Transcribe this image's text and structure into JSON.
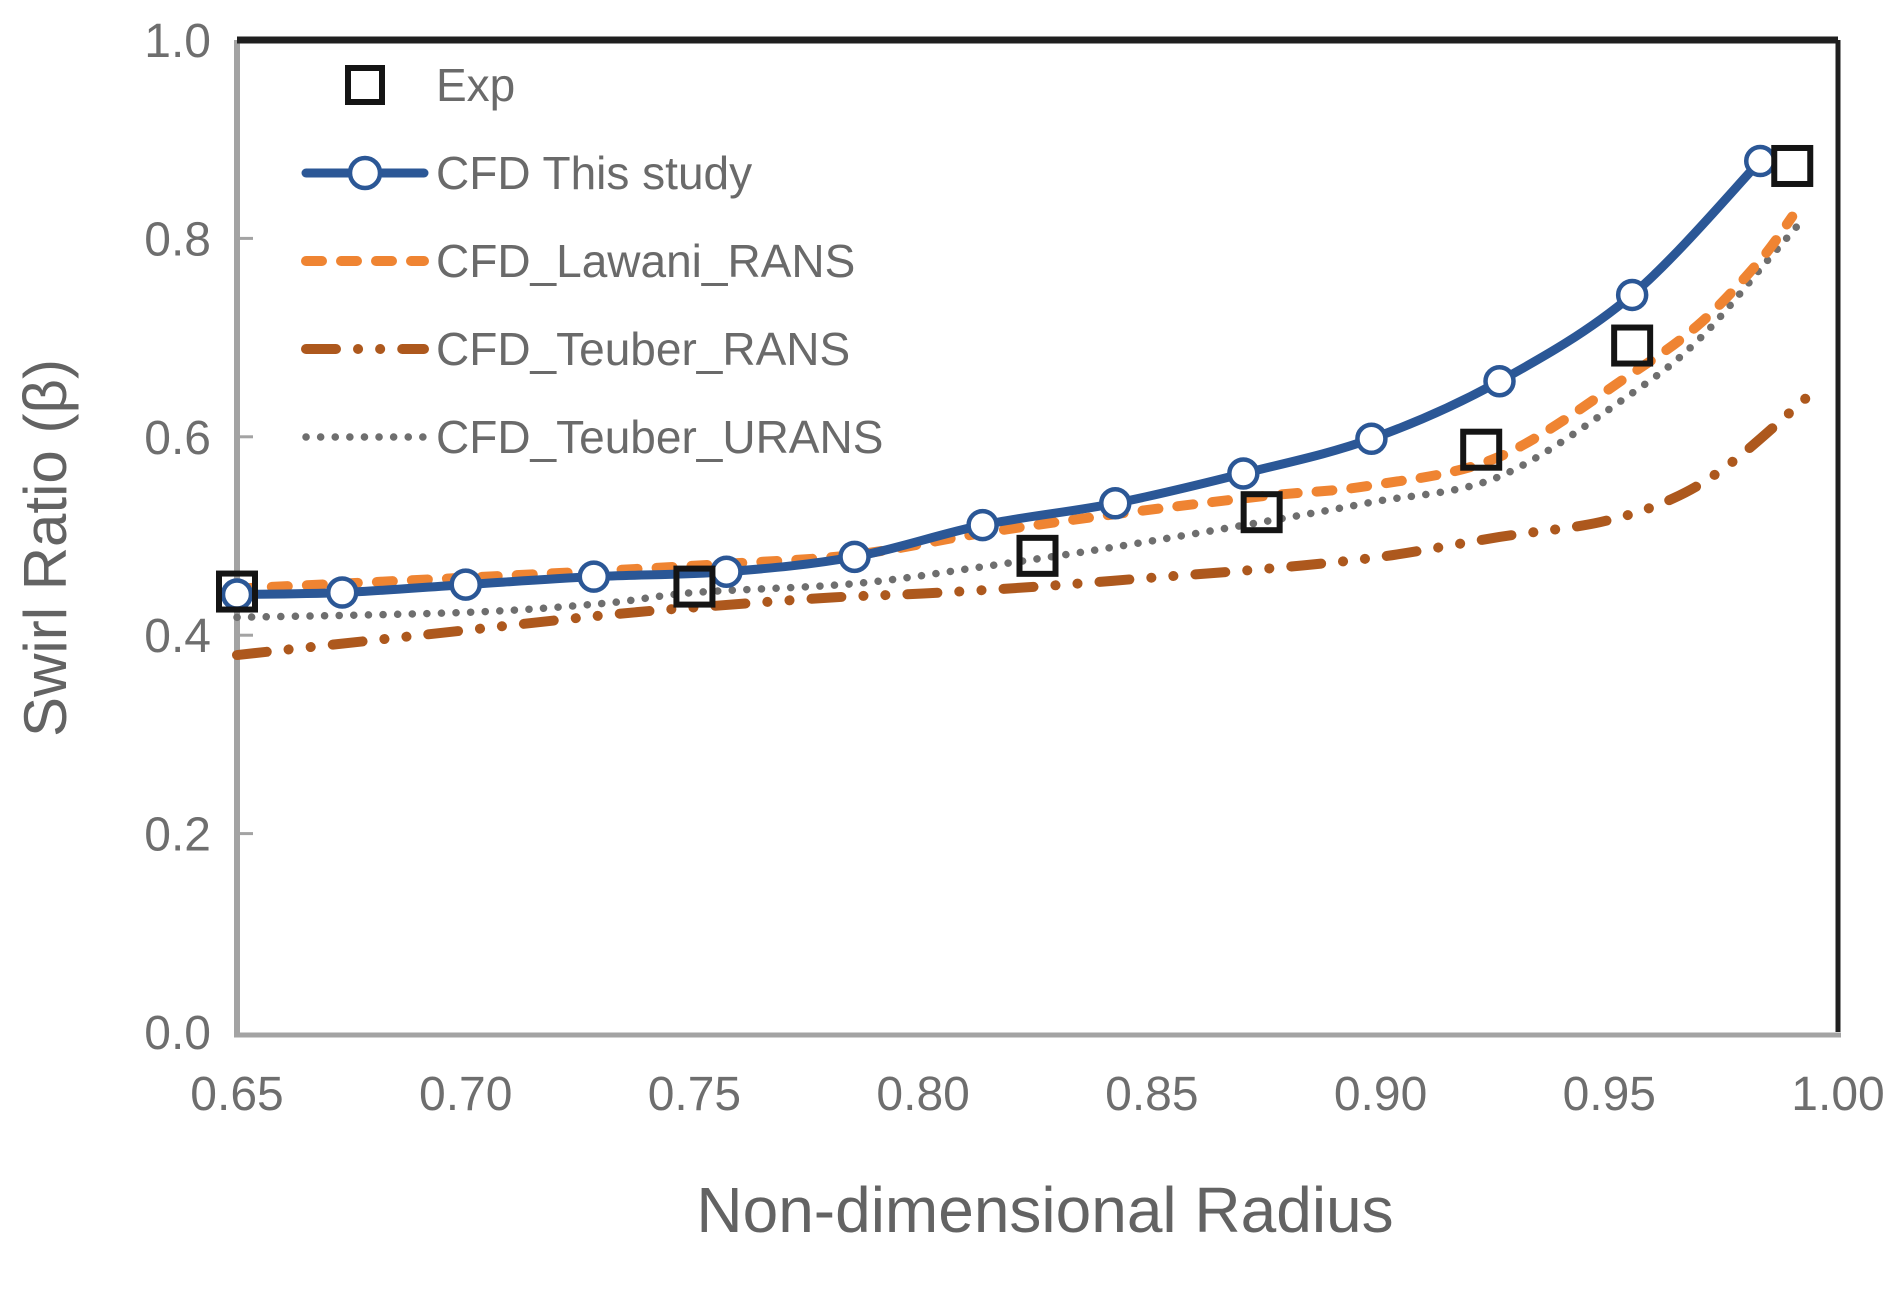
{
  "chart_data": {
    "type": "line",
    "title": "",
    "xlabel": "Non-dimensional Radius",
    "ylabel": "Swirl Ratio (β)",
    "xlim": [
      0.65,
      1.0
    ],
    "ylim": [
      0.0,
      1.0
    ],
    "grid": false,
    "legend_position": "inside-top-left",
    "x_ticks": [
      "0.65",
      "0.70",
      "0.75",
      "0.80",
      "0.85",
      "0.90",
      "0.95",
      "1.00"
    ],
    "y_ticks": [
      "0.0",
      "0.2",
      "0.4",
      "0.6",
      "0.8",
      "1.0"
    ],
    "axis_colors": {
      "left_bottom_axis": "#a3a3a3",
      "top_right_border": "#1f1f1f"
    },
    "series": [
      {
        "name": "CFD_Teuber_URANS",
        "type": "line",
        "line_style": "dotted",
        "marker": null,
        "color": "#6e6e6e",
        "points": [
          [
            0.65,
            0.418
          ],
          [
            0.7,
            0.423
          ],
          [
            0.73,
            0.432
          ],
          [
            0.75,
            0.443
          ],
          [
            0.785,
            0.452
          ],
          [
            0.813,
            0.469
          ],
          [
            0.842,
            0.489
          ],
          [
            0.874,
            0.514
          ],
          [
            0.898,
            0.534
          ],
          [
            0.926,
            0.56
          ],
          [
            0.955,
            0.644
          ],
          [
            0.97,
            0.7
          ],
          [
            0.985,
            0.78
          ],
          [
            0.991,
            0.812
          ]
        ]
      },
      {
        "name": "CFD_Teuber_RANS",
        "type": "line",
        "line_style": "dash-dot-dot",
        "marker": null,
        "color": "#ad581d",
        "points": [
          [
            0.65,
            0.38
          ],
          [
            0.68,
            0.395
          ],
          [
            0.7,
            0.405
          ],
          [
            0.73,
            0.42
          ],
          [
            0.75,
            0.428
          ],
          [
            0.78,
            0.438
          ],
          [
            0.8,
            0.442
          ],
          [
            0.825,
            0.449
          ],
          [
            0.85,
            0.458
          ],
          [
            0.875,
            0.467
          ],
          [
            0.9,
            0.479
          ],
          [
            0.926,
            0.499
          ],
          [
            0.948,
            0.514
          ],
          [
            0.964,
            0.538
          ],
          [
            0.977,
            0.575
          ],
          [
            0.993,
            0.639
          ]
        ]
      },
      {
        "name": "CFD_Lawani_RANS",
        "type": "line",
        "line_style": "dashed",
        "marker": null,
        "color": "#ef8432",
        "points": [
          [
            0.65,
            0.447
          ],
          [
            0.7,
            0.458
          ],
          [
            0.73,
            0.465
          ],
          [
            0.757,
            0.472
          ],
          [
            0.785,
            0.481
          ],
          [
            0.813,
            0.503
          ],
          [
            0.842,
            0.522
          ],
          [
            0.874,
            0.54
          ],
          [
            0.898,
            0.551
          ],
          [
            0.926,
            0.58
          ],
          [
            0.955,
            0.664
          ],
          [
            0.97,
            0.715
          ],
          [
            0.983,
            0.778
          ],
          [
            0.99,
            0.822
          ]
        ]
      },
      {
        "name": "CFD This study",
        "type": "line",
        "line_style": "solid",
        "marker": "open-circle",
        "color": "#2b5796",
        "points": [
          [
            0.65,
            0.441
          ],
          [
            0.673,
            0.443
          ],
          [
            0.7,
            0.451
          ],
          [
            0.728,
            0.459
          ],
          [
            0.757,
            0.464
          ],
          [
            0.785,
            0.479
          ],
          [
            0.813,
            0.511
          ],
          [
            0.842,
            0.533
          ],
          [
            0.87,
            0.563
          ],
          [
            0.898,
            0.598
          ],
          [
            0.926,
            0.656
          ],
          [
            0.955,
            0.743
          ],
          [
            0.983,
            0.878
          ]
        ]
      },
      {
        "name": "Exp",
        "type": "scatter",
        "line_style": "none",
        "marker": "open-square",
        "color": "#141414",
        "points": [
          [
            0.65,
            0.444
          ],
          [
            0.75,
            0.449
          ],
          [
            0.825,
            0.48
          ],
          [
            0.874,
            0.524
          ],
          [
            0.922,
            0.587
          ],
          [
            0.955,
            0.692
          ],
          [
            0.99,
            0.873
          ]
        ]
      }
    ],
    "legend_order": [
      "Exp",
      "CFD This study",
      "CFD_Lawani_RANS",
      "CFD_Teuber_RANS",
      "CFD_Teuber_URANS"
    ]
  }
}
